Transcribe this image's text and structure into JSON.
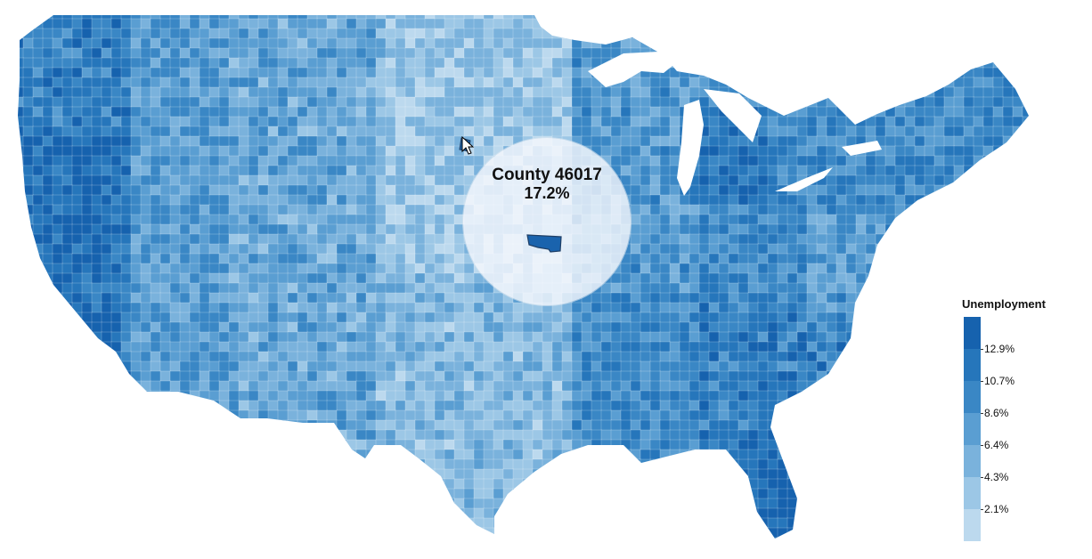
{
  "tooltip": {
    "county_label": "County 46017",
    "unemployment_value": "17.2%"
  },
  "legend": {
    "title": "Unemployment",
    "ticks": [
      "12.9%",
      "10.7%",
      "8.6%",
      "6.4%",
      "4.3%",
      "2.1%"
    ],
    "colors": [
      "#1662ae",
      "#2676bb",
      "#3a87c5",
      "#5a9ed2",
      "#7ab2dc",
      "#9cc7e6",
      "#bcd9ee"
    ]
  },
  "map": {
    "palette": [
      "#bcd9ee",
      "#9cc7e6",
      "#7ab2dc",
      "#5a9ed2",
      "#3a87c5",
      "#2676bb",
      "#1662ae"
    ],
    "lake_color": "#ffffff",
    "highlight_color": "#1a63ad"
  }
}
